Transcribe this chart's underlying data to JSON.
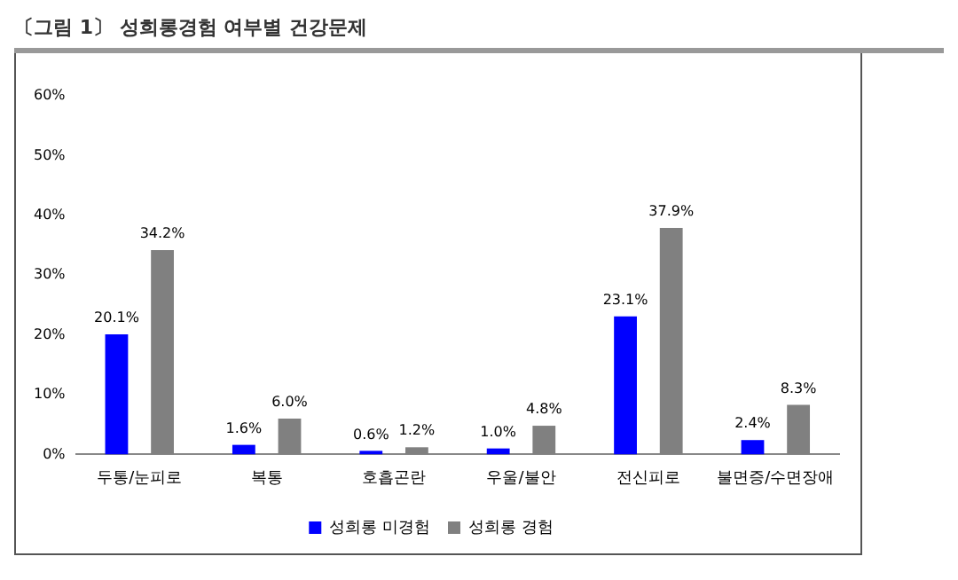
{
  "chart_data": {
    "type": "bar",
    "title": "〔그림 1〕 성희롱경험 여부별 건강문제",
    "categories": [
      "두통/눈피로",
      "복통",
      "호흡곤란",
      "우울/불안",
      "전신피로",
      "불면증/수면장애"
    ],
    "series": [
      {
        "name": "성희롱 미경험",
        "color": "#0000ff",
        "values": [
          20.1,
          1.6,
          0.6,
          1.0,
          23.1,
          2.4
        ],
        "value_labels": [
          "20.1%",
          "1.6%",
          "0.6%",
          "1.0%",
          "23.1%",
          "2.4%"
        ]
      },
      {
        "name": "성희롱 경험",
        "color": "#808080",
        "values": [
          34.2,
          6.0,
          1.2,
          4.8,
          37.9,
          8.3
        ],
        "value_labels": [
          "34.2%",
          "6.0%",
          "1.2%",
          "4.8%",
          "37.9%",
          "8.3%"
        ]
      }
    ],
    "ylim": [
      0,
      60
    ],
    "yticks": [
      {
        "value": 0,
        "label": "0%"
      },
      {
        "value": 10,
        "label": "10%"
      },
      {
        "value": 20,
        "label": "20%"
      },
      {
        "value": 30,
        "label": "30%"
      },
      {
        "value": 40,
        "label": "40%"
      },
      {
        "value": 50,
        "label": "50%"
      },
      {
        "value": 60,
        "label": "60%"
      }
    ],
    "grid": false,
    "legend": "bottom"
  }
}
